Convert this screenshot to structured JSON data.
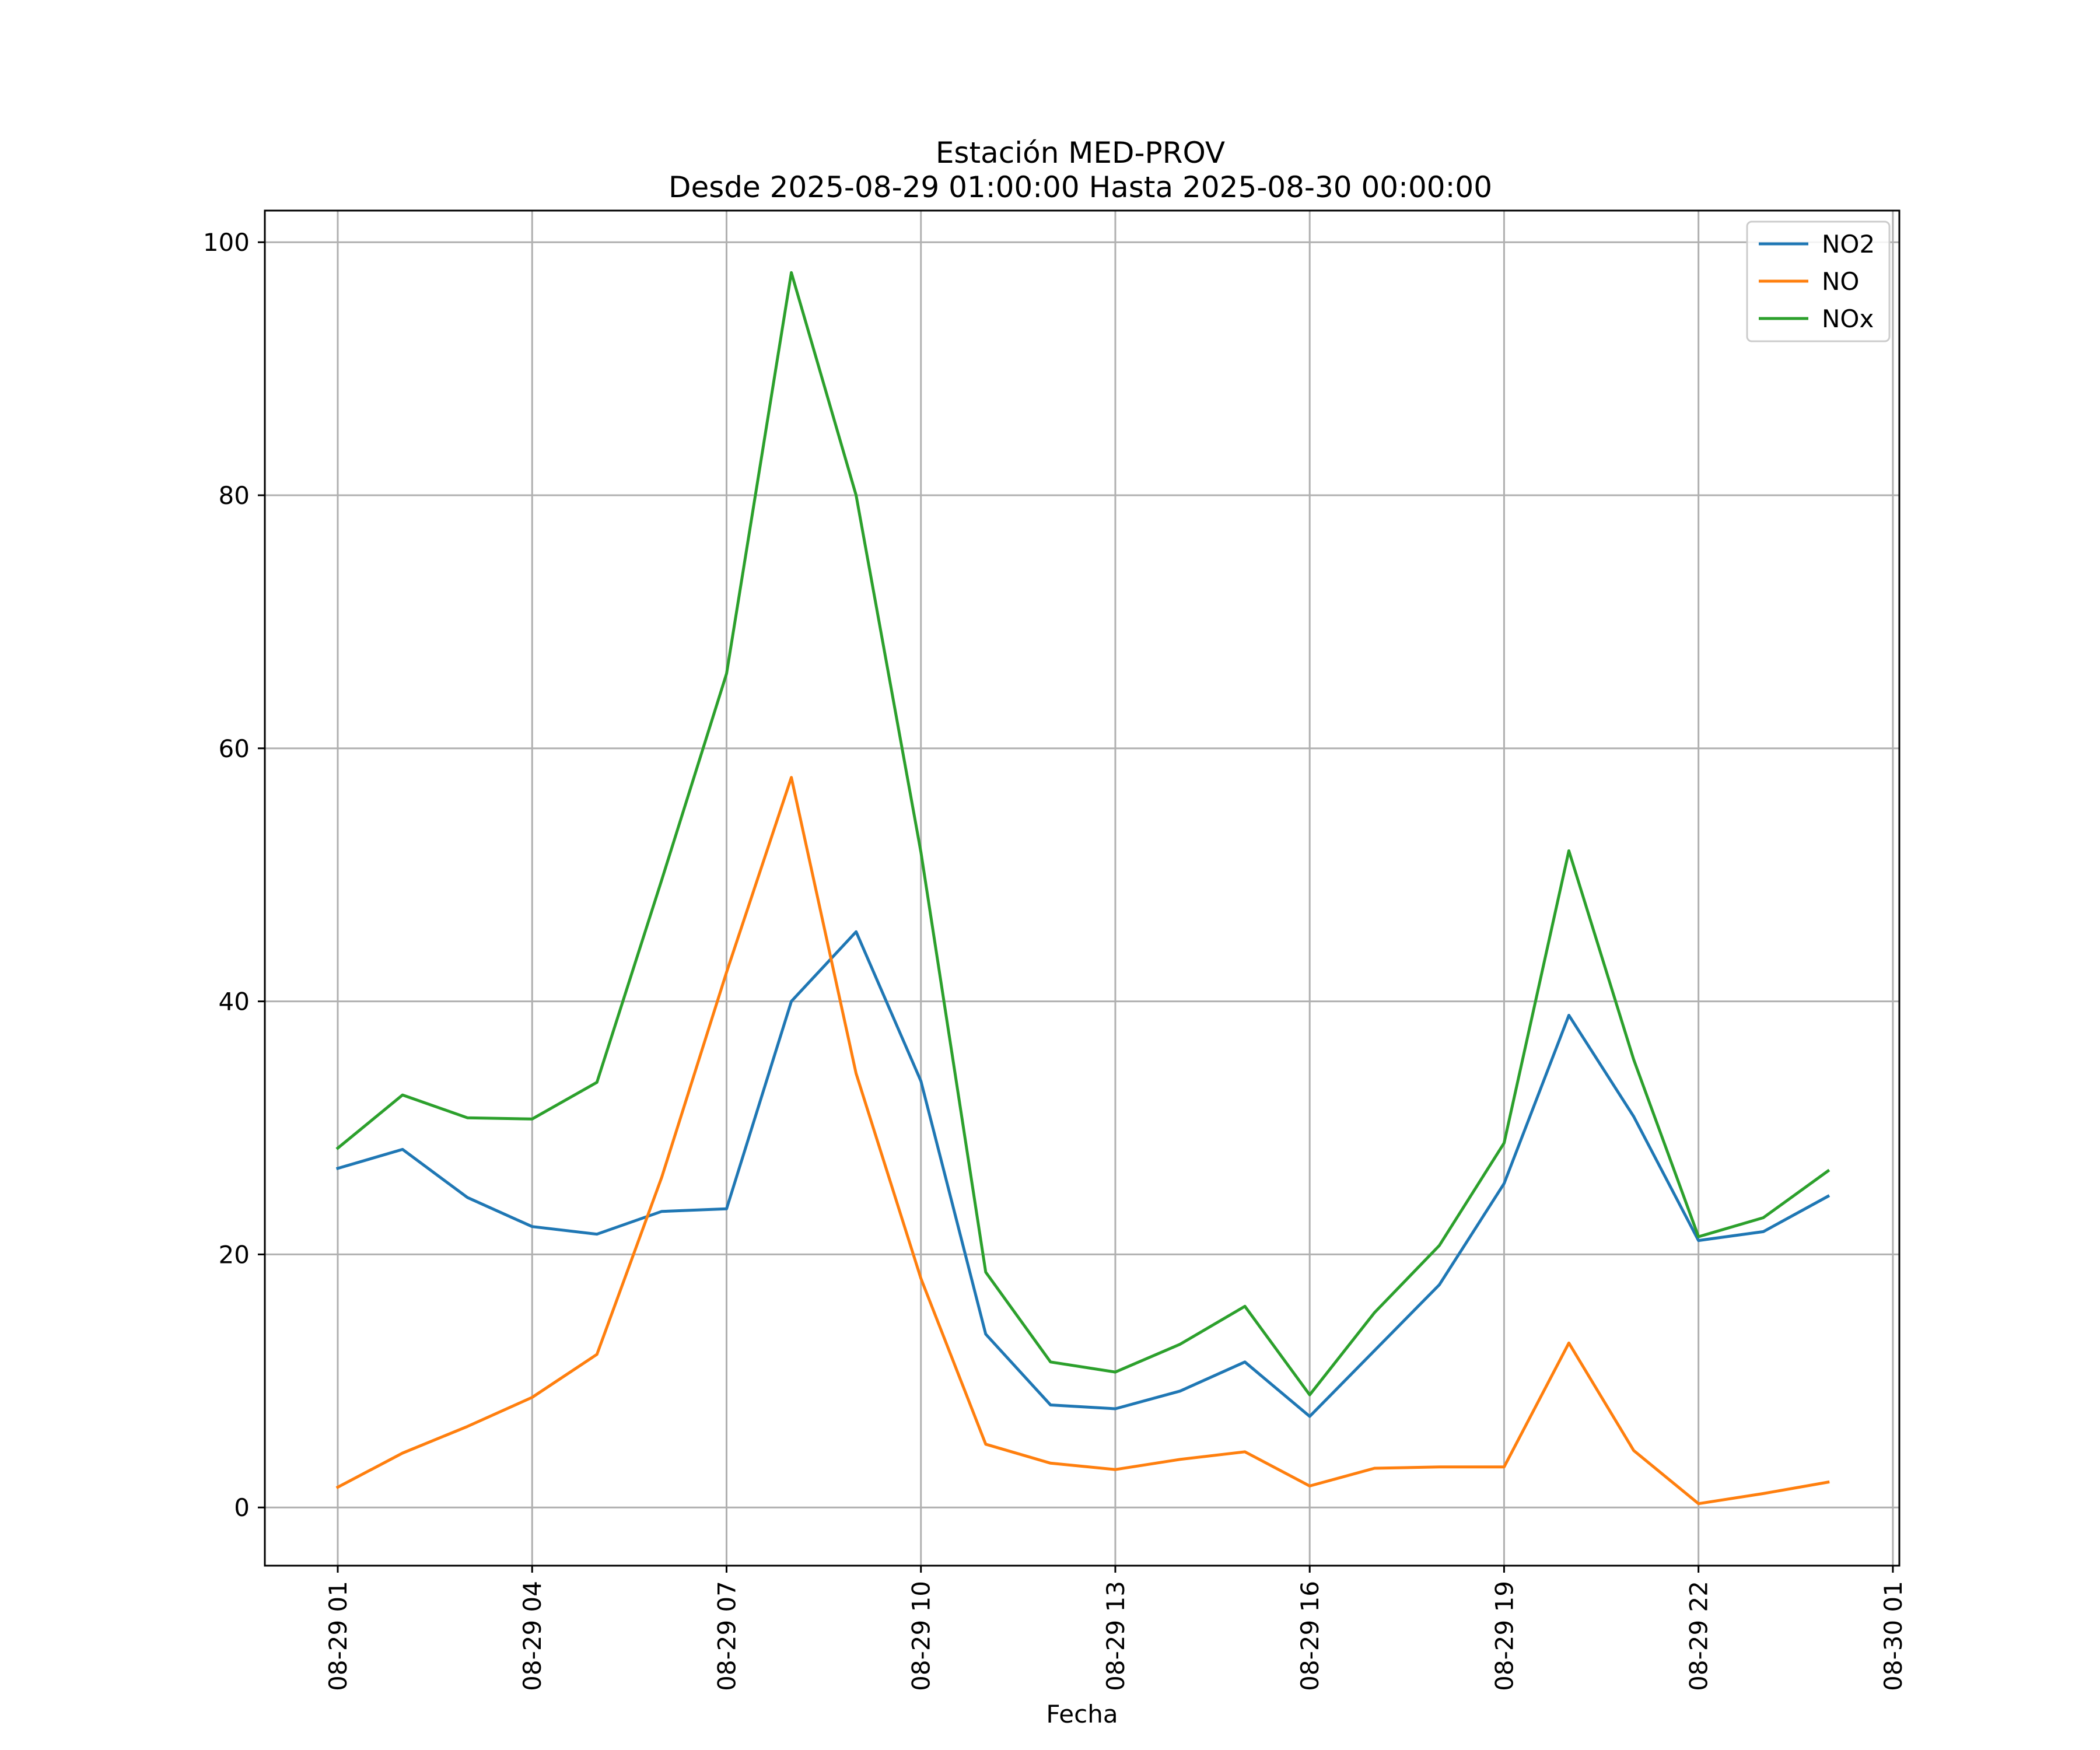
{
  "chart_data": {
    "type": "line",
    "title": "Estación MED-PROV",
    "subtitle": "Desde 2025-08-29 01:00:00 Hasta 2025-08-30 00:00:00",
    "xlabel": "Fecha",
    "ylabel": "",
    "x": [
      "08-29 01",
      "08-29 02",
      "08-29 03",
      "08-29 04",
      "08-29 05",
      "08-29 06",
      "08-29 07",
      "08-29 08",
      "08-29 09",
      "08-29 10",
      "08-29 11",
      "08-29 12",
      "08-29 13",
      "08-29 14",
      "08-29 15",
      "08-29 16",
      "08-29 17",
      "08-29 18",
      "08-29 19",
      "08-29 20",
      "08-29 21",
      "08-29 22",
      "08-29 23",
      "08-30 00"
    ],
    "xtick_labels": [
      "08-29 01",
      "08-29 04",
      "08-29 07",
      "08-29 10",
      "08-29 13",
      "08-29 16",
      "08-29 19",
      "08-29 22",
      "08-30 01"
    ],
    "xlim": [
      "08-29 00:00 (approx. 23:52 of 08-28)",
      "08-30 01:05"
    ],
    "ytick_labels": [
      "0",
      "20",
      "40",
      "60",
      "80",
      "100"
    ],
    "ylim": [
      -4.6,
      102.5
    ],
    "grid": true,
    "legend_position": "top-right",
    "series": [
      {
        "name": "NO2",
        "color": "#1f77b4",
        "values": [
          26.8,
          28.3,
          24.5,
          22.2,
          21.6,
          23.4,
          23.6,
          40.0,
          45.5,
          33.7,
          13.7,
          8.1,
          7.8,
          9.2,
          11.5,
          7.2,
          12.4,
          17.6,
          25.6,
          38.9,
          30.9,
          21.1,
          21.8,
          24.6
        ]
      },
      {
        "name": "NO",
        "color": "#ff7f0e",
        "values": [
          1.6,
          4.3,
          6.4,
          8.7,
          12.1,
          26.1,
          42.3,
          57.7,
          34.3,
          18.1,
          5.0,
          3.5,
          3.0,
          3.8,
          4.4,
          1.7,
          3.1,
          3.2,
          3.2,
          13.0,
          4.5,
          0.3,
          1.1,
          2.0
        ]
      },
      {
        "name": "NOx",
        "color": "#2ca02c",
        "values": [
          28.4,
          32.6,
          30.8,
          30.7,
          33.6,
          49.6,
          65.9,
          97.6,
          80.0,
          51.8,
          18.6,
          11.5,
          10.7,
          12.9,
          15.9,
          8.9,
          15.4,
          20.7,
          28.8,
          51.9,
          35.4,
          21.4,
          22.9,
          26.6
        ]
      }
    ]
  }
}
